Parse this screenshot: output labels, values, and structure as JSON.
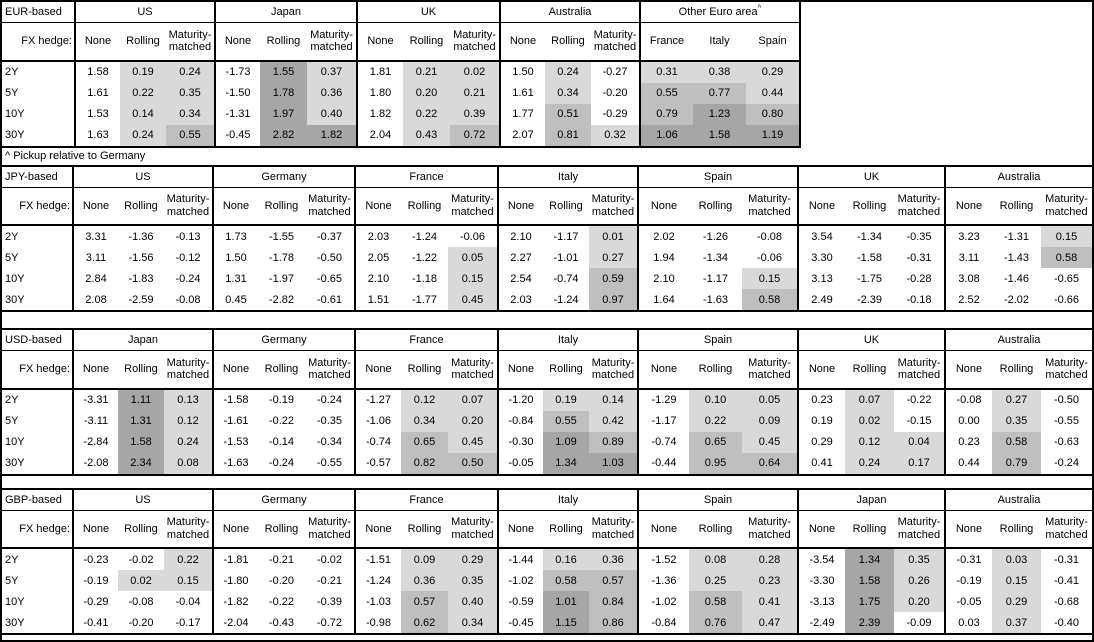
{
  "footnote": "^ Pickup relative to Germany",
  "fx_hedge_label": "FX hedge:",
  "tenors": [
    "2Y",
    "5Y",
    "10Y",
    "30Y"
  ],
  "hedge_columns": [
    "None",
    "Rolling",
    "Maturity-matched"
  ],
  "heat": {
    "rules": [
      {
        "gte": 1.0,
        "color": "#A6A6A6"
      },
      {
        "gte": 0.5,
        "color": "#BFBFBF"
      },
      {
        "gt": 0,
        "color": "#D9D9D9"
      }
    ],
    "none_color": "#FFFFFF",
    "border_color": "#000000"
  },
  "tables": [
    {
      "base": "EUR-based",
      "groups": [
        {
          "name": "US",
          "cols": [
            "None",
            "Rolling",
            "Maturity-matched"
          ],
          "shade": [
            false,
            true,
            true
          ],
          "rows": [
            [
              1.58,
              0.19,
              0.24
            ],
            [
              1.61,
              0.22,
              0.35
            ],
            [
              1.53,
              0.14,
              0.34
            ],
            [
              1.63,
              0.24,
              0.55
            ]
          ]
        },
        {
          "name": "Japan",
          "cols": [
            "None",
            "Rolling",
            "Maturity-matched"
          ],
          "shade": [
            false,
            true,
            true
          ],
          "rows": [
            [
              -1.73,
              1.55,
              0.37
            ],
            [
              -1.5,
              1.78,
              0.36
            ],
            [
              -1.31,
              1.97,
              0.4
            ],
            [
              -0.45,
              2.82,
              1.82
            ]
          ]
        },
        {
          "name": "UK",
          "cols": [
            "None",
            "Rolling",
            "Maturity-matched"
          ],
          "shade": [
            false,
            true,
            true
          ],
          "rows": [
            [
              1.81,
              0.21,
              0.02
            ],
            [
              1.8,
              0.2,
              0.21
            ],
            [
              1.82,
              0.22,
              0.39
            ],
            [
              2.04,
              0.43,
              0.72
            ]
          ]
        },
        {
          "name": "Australia",
          "cols": [
            "None",
            "Rolling",
            "Maturity-matched"
          ],
          "shade": [
            false,
            true,
            true
          ],
          "rows": [
            [
              1.5,
              0.24,
              -0.27
            ],
            [
              1.61,
              0.34,
              -0.2
            ],
            [
              1.77,
              0.51,
              -0.29
            ],
            [
              2.07,
              0.81,
              0.32
            ]
          ]
        },
        {
          "name": "Other Euro area",
          "sup": "^",
          "country_cols": true,
          "cols": [
            "France",
            "Italy",
            "Spain"
          ],
          "shade": [
            true,
            true,
            true
          ],
          "rows": [
            [
              0.31,
              0.38,
              0.29
            ],
            [
              0.55,
              0.77,
              0.44
            ],
            [
              0.79,
              1.23,
              0.8
            ],
            [
              1.06,
              1.58,
              1.19
            ]
          ]
        }
      ]
    },
    {
      "base": "JPY-based",
      "groups": [
        {
          "name": "US",
          "cols": [
            "None",
            "Rolling",
            "Maturity-matched"
          ],
          "shade": [
            false,
            true,
            true
          ],
          "rows": [
            [
              3.31,
              -1.36,
              -0.13
            ],
            [
              3.11,
              -1.56,
              -0.12
            ],
            [
              2.84,
              -1.83,
              -0.24
            ],
            [
              2.08,
              -2.59,
              -0.08
            ]
          ]
        },
        {
          "name": "Germany",
          "cols": [
            "None",
            "Rolling",
            "Maturity-matched"
          ],
          "shade": [
            false,
            true,
            true
          ],
          "rows": [
            [
              1.73,
              -1.55,
              -0.37
            ],
            [
              1.5,
              -1.78,
              -0.5
            ],
            [
              1.31,
              -1.97,
              -0.65
            ],
            [
              0.45,
              -2.82,
              -0.61
            ]
          ]
        },
        {
          "name": "France",
          "cols": [
            "None",
            "Rolling",
            "Maturity-matched"
          ],
          "shade": [
            false,
            true,
            true
          ],
          "rows": [
            [
              2.03,
              -1.24,
              -0.06
            ],
            [
              2.05,
              -1.22,
              0.05
            ],
            [
              2.1,
              -1.18,
              0.15
            ],
            [
              1.51,
              -1.77,
              0.45
            ]
          ]
        },
        {
          "name": "Italy",
          "cols": [
            "None",
            "Rolling",
            "Maturity-matched"
          ],
          "shade": [
            false,
            true,
            true
          ],
          "rows": [
            [
              2.1,
              -1.17,
              0.01
            ],
            [
              2.27,
              -1.01,
              0.27
            ],
            [
              2.54,
              -0.74,
              0.59
            ],
            [
              2.03,
              -1.24,
              0.97
            ]
          ]
        },
        {
          "name": "Spain",
          "cols": [
            "None",
            "Rolling",
            "Maturity-matched"
          ],
          "shade": [
            false,
            true,
            true
          ],
          "rows": [
            [
              2.02,
              -1.26,
              -0.08
            ],
            [
              1.94,
              -1.34,
              -0.06
            ],
            [
              2.1,
              -1.17,
              0.15
            ],
            [
              1.64,
              -1.63,
              0.58
            ]
          ]
        },
        {
          "name": "UK",
          "cols": [
            "None",
            "Rolling",
            "Maturity-matched"
          ],
          "shade": [
            false,
            true,
            true
          ],
          "rows": [
            [
              3.54,
              -1.34,
              -0.35
            ],
            [
              3.3,
              -1.58,
              -0.31
            ],
            [
              3.13,
              -1.75,
              -0.28
            ],
            [
              2.49,
              -2.39,
              -0.18
            ]
          ]
        },
        {
          "name": "Australia",
          "cols": [
            "None",
            "Rolling",
            "Maturity-matched"
          ],
          "shade": [
            false,
            true,
            true
          ],
          "rows": [
            [
              3.23,
              -1.31,
              0.15
            ],
            [
              3.11,
              -1.43,
              0.58
            ],
            [
              3.08,
              -1.46,
              -0.65
            ],
            [
              2.52,
              -2.02,
              -0.66
            ]
          ]
        }
      ]
    },
    {
      "base": "USD-based",
      "groups": [
        {
          "name": "Japan",
          "cols": [
            "None",
            "Rolling",
            "Maturity-matched"
          ],
          "shade": [
            false,
            true,
            true
          ],
          "rows": [
            [
              -3.31,
              1.11,
              0.13
            ],
            [
              -3.11,
              1.31,
              0.12
            ],
            [
              -2.84,
              1.58,
              0.24
            ],
            [
              -2.08,
              2.34,
              0.08
            ]
          ]
        },
        {
          "name": "Germany",
          "cols": [
            "None",
            "Rolling",
            "Maturity-matched"
          ],
          "shade": [
            false,
            true,
            true
          ],
          "rows": [
            [
              -1.58,
              -0.19,
              -0.24
            ],
            [
              -1.61,
              -0.22,
              -0.35
            ],
            [
              -1.53,
              -0.14,
              -0.34
            ],
            [
              -1.63,
              -0.24,
              -0.55
            ]
          ]
        },
        {
          "name": "France",
          "cols": [
            "None",
            "Rolling",
            "Maturity-matched"
          ],
          "shade": [
            false,
            true,
            true
          ],
          "rows": [
            [
              -1.27,
              0.12,
              0.07
            ],
            [
              -1.06,
              0.34,
              0.2
            ],
            [
              -0.74,
              0.65,
              0.45
            ],
            [
              -0.57,
              0.82,
              0.5
            ]
          ]
        },
        {
          "name": "Italy",
          "cols": [
            "None",
            "Rolling",
            "Maturity-matched"
          ],
          "shade": [
            false,
            true,
            true
          ],
          "rows": [
            [
              -1.2,
              0.19,
              0.14
            ],
            [
              -0.84,
              0.55,
              0.42
            ],
            [
              -0.3,
              1.09,
              0.89
            ],
            [
              -0.05,
              1.34,
              1.03
            ]
          ]
        },
        {
          "name": "Spain",
          "cols": [
            "None",
            "Rolling",
            "Maturity-matched"
          ],
          "shade": [
            false,
            true,
            true
          ],
          "rows": [
            [
              -1.29,
              0.1,
              0.05
            ],
            [
              -1.17,
              0.22,
              0.09
            ],
            [
              -0.74,
              0.65,
              0.45
            ],
            [
              -0.44,
              0.95,
              0.64
            ]
          ]
        },
        {
          "name": "UK",
          "cols": [
            "None",
            "Rolling",
            "Maturity-matched"
          ],
          "shade": [
            false,
            true,
            true
          ],
          "rows": [
            [
              0.23,
              0.07,
              -0.22
            ],
            [
              0.19,
              0.02,
              -0.15
            ],
            [
              0.29,
              0.12,
              0.04
            ],
            [
              0.41,
              0.24,
              0.17
            ]
          ]
        },
        {
          "name": "Australia",
          "cols": [
            "None",
            "Rolling",
            "Maturity-matched"
          ],
          "shade": [
            false,
            true,
            true
          ],
          "rows": [
            [
              -0.08,
              0.27,
              -0.5
            ],
            [
              0.0,
              0.35,
              -0.55
            ],
            [
              0.23,
              0.58,
              -0.63
            ],
            [
              0.44,
              0.79,
              -0.24
            ]
          ]
        }
      ]
    },
    {
      "base": "GBP-based",
      "groups": [
        {
          "name": "US",
          "cols": [
            "None",
            "Rolling",
            "Maturity-matched"
          ],
          "shade": [
            false,
            true,
            true
          ],
          "rows": [
            [
              -0.23,
              -0.02,
              0.22
            ],
            [
              -0.19,
              0.02,
              0.15
            ],
            [
              -0.29,
              -0.08,
              -0.04
            ],
            [
              -0.41,
              -0.2,
              -0.17
            ]
          ]
        },
        {
          "name": "Germany",
          "cols": [
            "None",
            "Rolling",
            "Maturity-matched"
          ],
          "shade": [
            false,
            true,
            true
          ],
          "rows": [
            [
              -1.81,
              -0.21,
              -0.02
            ],
            [
              -1.8,
              -0.2,
              -0.21
            ],
            [
              -1.82,
              -0.22,
              -0.39
            ],
            [
              -2.04,
              -0.43,
              -0.72
            ]
          ]
        },
        {
          "name": "France",
          "cols": [
            "None",
            "Rolling",
            "Maturity-matched"
          ],
          "shade": [
            false,
            true,
            true
          ],
          "rows": [
            [
              -1.51,
              0.09,
              0.29
            ],
            [
              -1.24,
              0.36,
              0.35
            ],
            [
              -1.03,
              0.57,
              0.4
            ],
            [
              -0.98,
              0.62,
              0.34
            ]
          ]
        },
        {
          "name": "Italy",
          "cols": [
            "None",
            "Rolling",
            "Maturity-matched"
          ],
          "shade": [
            false,
            true,
            true
          ],
          "rows": [
            [
              -1.44,
              0.16,
              0.36
            ],
            [
              -1.02,
              0.58,
              0.57
            ],
            [
              -0.59,
              1.01,
              0.84
            ],
            [
              -0.45,
              1.15,
              0.86
            ]
          ]
        },
        {
          "name": "Spain",
          "cols": [
            "None",
            "Rolling",
            "Maturity-matched"
          ],
          "shade": [
            false,
            true,
            true
          ],
          "rows": [
            [
              -1.52,
              0.08,
              0.28
            ],
            [
              -1.36,
              0.25,
              0.23
            ],
            [
              -1.02,
              0.58,
              0.41
            ],
            [
              -0.84,
              0.76,
              0.47
            ]
          ]
        },
        {
          "name": "Japan",
          "cols": [
            "None",
            "Rolling",
            "Maturity-matched"
          ],
          "shade": [
            false,
            true,
            true
          ],
          "rows": [
            [
              -3.54,
              1.34,
              0.35
            ],
            [
              -3.3,
              1.58,
              0.26
            ],
            [
              -3.13,
              1.75,
              0.2
            ],
            [
              -2.49,
              2.39,
              -0.09
            ]
          ]
        },
        {
          "name": "Australia",
          "cols": [
            "None",
            "Rolling",
            "Maturity-matched"
          ],
          "shade": [
            false,
            true,
            true
          ],
          "rows": [
            [
              -0.31,
              0.03,
              -0.31
            ],
            [
              -0.19,
              0.15,
              -0.41
            ],
            [
              -0.05,
              0.29,
              -0.68
            ],
            [
              0.03,
              0.37,
              -0.4
            ]
          ]
        }
      ]
    }
  ]
}
